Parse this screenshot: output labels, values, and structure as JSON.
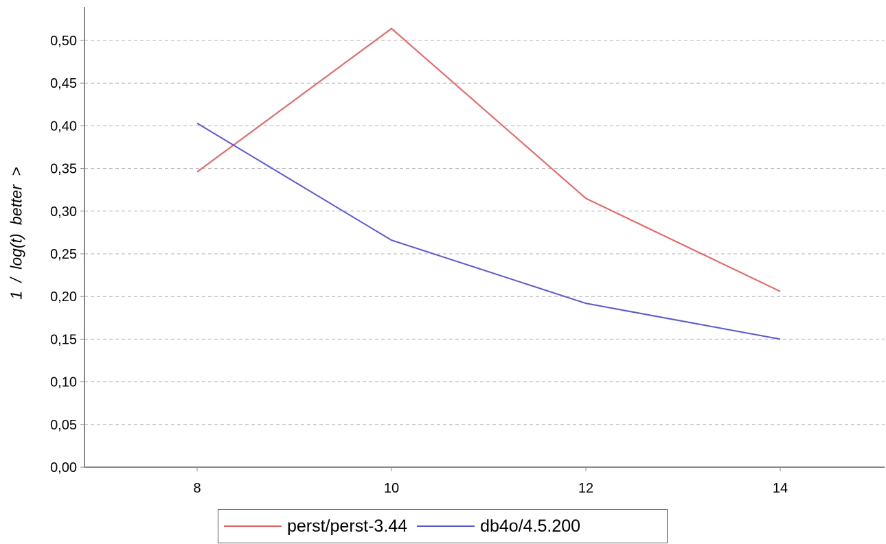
{
  "chart_data": {
    "type": "line",
    "x": [
      8,
      10,
      12,
      14
    ],
    "xticks": [
      "8",
      "10",
      "12",
      "14"
    ],
    "xlim": [
      7,
      15.5
    ],
    "ylim": [
      0,
      0.55
    ],
    "yticks": [
      "0,00",
      "0,05",
      "0,10",
      "0,15",
      "0,20",
      "0,25",
      "0,30",
      "0,35",
      "0,40",
      "0,45",
      "0,50"
    ],
    "ylabel": "1 / log(t) better >",
    "xlabel": "",
    "grid": true,
    "legend_position": "bottom-center",
    "series": [
      {
        "name": "perst/perst-3.44",
        "color": "#f55d5d",
        "values": [
          0.346,
          0.514,
          0.315,
          0.206
        ]
      },
      {
        "name": "db4o/4.5.200",
        "color": "#5555f0",
        "values": [
          0.403,
          0.266,
          0.192,
          0.15
        ]
      }
    ]
  }
}
